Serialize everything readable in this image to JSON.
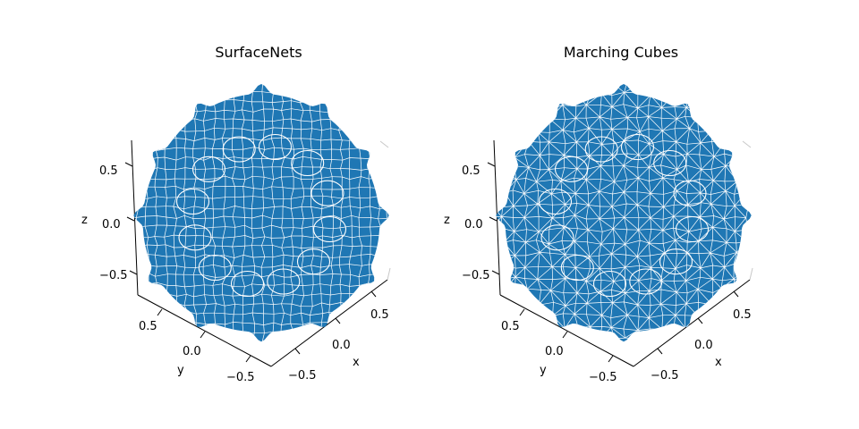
{
  "chart_data": [
    {
      "type": "surface3d",
      "mesh": "quad",
      "title": "SurfaceNets",
      "xlabel": "x",
      "ylabel": "y",
      "zlabel": "z",
      "xticks": [
        "−0.5",
        "0.0",
        "0.5"
      ],
      "yticks": [
        "−0.5",
        "0.0",
        "0.5"
      ],
      "zticks": [
        "−0.5",
        "0.0",
        "0.5"
      ],
      "face_color": "#1f77b4",
      "edge_color": "#ffffff",
      "grid": false
    },
    {
      "type": "surface3d",
      "mesh": "triangle",
      "title": "Marching Cubes",
      "xlabel": "x",
      "ylabel": "y",
      "zlabel": "z",
      "xticks": [
        "−0.5",
        "0.0",
        "0.5"
      ],
      "yticks": [
        "−0.5",
        "0.0",
        "0.5"
      ],
      "zticks": [
        "−0.5",
        "0.0",
        "0.5"
      ],
      "face_color": "#1f77b4",
      "edge_color": "#ffffff",
      "grid": false
    }
  ]
}
